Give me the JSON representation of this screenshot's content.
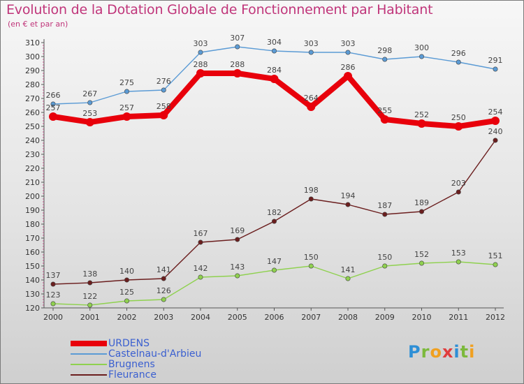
{
  "header": {
    "title": "Evolution de la Dotation Globale de Fonctionnement par Habitant",
    "subtitle": "(en € et par an)"
  },
  "logo": {
    "text": "Proxiti",
    "letters": [
      {
        "ch": "P",
        "color": "#2e8fd6"
      },
      {
        "ch": "r",
        "color": "#7cb93c"
      },
      {
        "ch": "o",
        "color": "#f0a020"
      },
      {
        "ch": "x",
        "color": "#e03c3c"
      },
      {
        "ch": "i",
        "color": "#2e8fd6"
      },
      {
        "ch": "t",
        "color": "#7cb93c"
      },
      {
        "ch": "i",
        "color": "#f0a020"
      }
    ]
  },
  "chart_data": {
    "type": "line",
    "title": "Evolution de la Dotation Globale de Fonctionnement par Habitant",
    "subtitle": "(en € et par an)",
    "x": [
      "2000",
      "2001",
      "2002",
      "2003",
      "2004",
      "2005",
      "2006",
      "2007",
      "2008",
      "2009",
      "2010",
      "2011",
      "2012"
    ],
    "ylim": [
      120,
      310
    ],
    "yticks": [
      120,
      130,
      140,
      150,
      160,
      170,
      180,
      190,
      200,
      210,
      220,
      230,
      240,
      250,
      260,
      270,
      280,
      290,
      300,
      310
    ],
    "grid": false,
    "legend_position": "bottom-left",
    "series": [
      {
        "name": "URDENS",
        "color": "#e8000b",
        "values": [
          257,
          253,
          257,
          258,
          288,
          288,
          284,
          264,
          286,
          255,
          252,
          250,
          254
        ]
      },
      {
        "name": "Castelnau-d'Arbieu",
        "color": "#5b9bd5",
        "values": [
          266,
          267,
          275,
          276,
          303,
          307,
          304,
          303,
          303,
          298,
          300,
          296,
          291
        ]
      },
      {
        "name": "Brugnens",
        "color": "#8fd14f",
        "values": [
          123,
          122,
          125,
          126,
          142,
          143,
          147,
          150,
          141,
          150,
          152,
          153,
          151
        ]
      },
      {
        "name": "Fleurance",
        "color": "#6b1e1e",
        "values": [
          137,
          138,
          140,
          141,
          167,
          169,
          182,
          198,
          194,
          187,
          189,
          203,
          240
        ]
      }
    ]
  }
}
